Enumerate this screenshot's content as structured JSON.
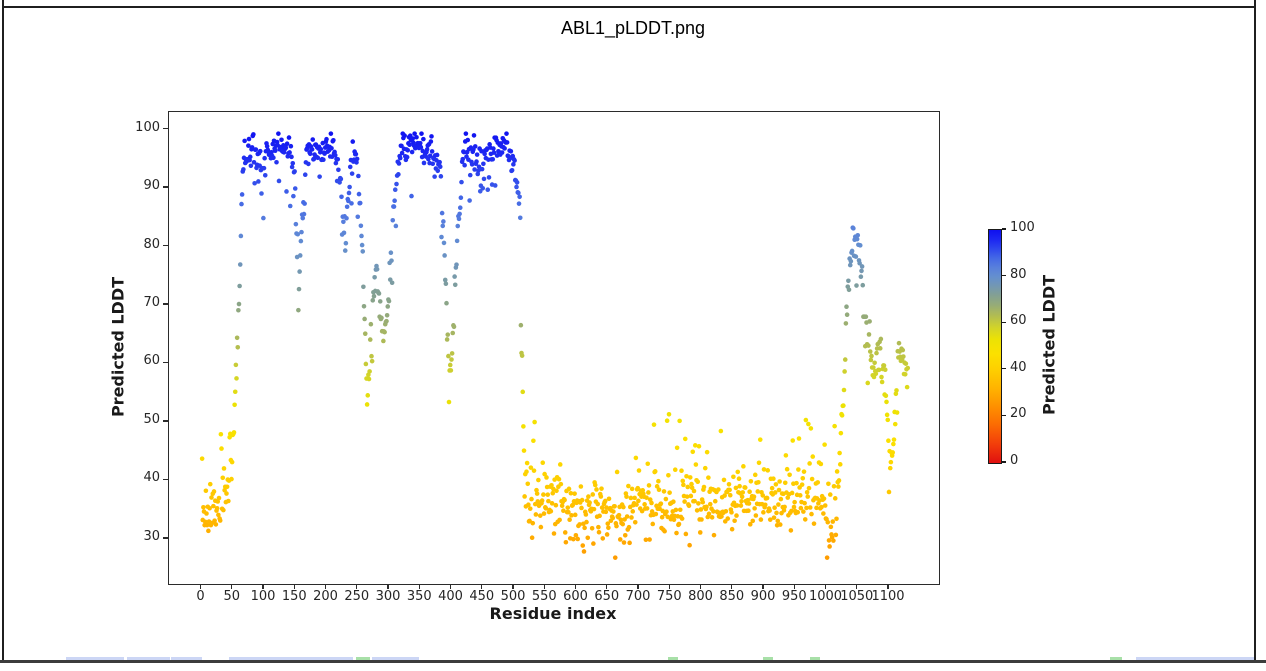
{
  "window": {
    "caption": "ABL1_pLDDT.png",
    "border_color": "#1f1f1f",
    "bottom_bar_color": "#3c3c3c",
    "below_edge_strips": [
      {
        "x": 66,
        "w": 58,
        "color": "#ccd6f5"
      },
      {
        "x": 127,
        "w": 43,
        "color": "#ccd6f5"
      },
      {
        "x": 171,
        "w": 31,
        "color": "#ccd6f5"
      },
      {
        "x": 229,
        "w": 124,
        "color": "#ccd6f5"
      },
      {
        "x": 356,
        "w": 14,
        "color": "#a8e0a8"
      },
      {
        "x": 372,
        "w": 47,
        "color": "#ccd6f5"
      },
      {
        "x": 668,
        "w": 10,
        "color": "#a8e0a8"
      },
      {
        "x": 763,
        "w": 10,
        "color": "#a8e0a8"
      },
      {
        "x": 810,
        "w": 10,
        "color": "#a8e0a8"
      },
      {
        "x": 1110,
        "w": 12,
        "color": "#a8e0a8"
      },
      {
        "x": 1136,
        "w": 118,
        "color": "#ccd6f5"
      }
    ]
  },
  "chart_data": {
    "type": "scatter",
    "title": "",
    "xlabel": "Residue index",
    "ylabel": "Predicted LDDT",
    "xlim": [
      -52,
      1180
    ],
    "ylim": [
      22.3,
      103
    ],
    "xticks": [
      0,
      50,
      100,
      150,
      200,
      250,
      300,
      350,
      400,
      450,
      500,
      550,
      600,
      650,
      700,
      750,
      800,
      850,
      900,
      950,
      1000,
      1050,
      1100
    ],
    "yticks": [
      30,
      40,
      50,
      60,
      70,
      80,
      90,
      100
    ],
    "grid": false,
    "num_points": 1130,
    "x_description": "one point per residue, index 1..1130",
    "summary": "N-terminal residues 1-52 low (~27-52); folded region 55-510 high (~85-99) with dips to ~54-77 near residues 150, 230, 260-300, 390-400 and at 505-515; central region 516-1020 low (~27-52); C-terminal 1020-1130 intermediate (rise to ~73-84 at 1032-1058, then ~55-67 with a dip to ~38-45 near 1100)",
    "seed": 7,
    "marker_radius_px": 2.3,
    "profile_anchors": [
      [
        1,
        36
      ],
      [
        6,
        34
      ],
      [
        12,
        33.5
      ],
      [
        18,
        34
      ],
      [
        25,
        34.5
      ],
      [
        32,
        35.5
      ],
      [
        38,
        37
      ],
      [
        44,
        40
      ],
      [
        48,
        44
      ],
      [
        51,
        49
      ],
      [
        54,
        55
      ],
      [
        56,
        60
      ],
      [
        58,
        64
      ],
      [
        60,
        70
      ],
      [
        62,
        78
      ],
      [
        64,
        88
      ],
      [
        66,
        93
      ],
      [
        69,
        95.5
      ],
      [
        75,
        96
      ],
      [
        85,
        96.5
      ],
      [
        92,
        95
      ],
      [
        96,
        92.5
      ],
      [
        99,
        93.5
      ],
      [
        103,
        95.5
      ],
      [
        110,
        96.5
      ],
      [
        120,
        97
      ],
      [
        132,
        97.3
      ],
      [
        140,
        96.5
      ],
      [
        147,
        94
      ],
      [
        151,
        88
      ],
      [
        154,
        77.5
      ],
      [
        156,
        72
      ],
      [
        158,
        77
      ],
      [
        161,
        86
      ],
      [
        164,
        92
      ],
      [
        168,
        95
      ],
      [
        175,
        96.3
      ],
      [
        185,
        96.8
      ],
      [
        192,
        95.5
      ],
      [
        198,
        96.5
      ],
      [
        205,
        96.8
      ],
      [
        212,
        96
      ],
      [
        218,
        94
      ],
      [
        223,
        89
      ],
      [
        227,
        83
      ],
      [
        230,
        79
      ],
      [
        233,
        85
      ],
      [
        237,
        91
      ],
      [
        241,
        94.5
      ],
      [
        246,
        95.5
      ],
      [
        250,
        93
      ],
      [
        254,
        88
      ],
      [
        258,
        78
      ],
      [
        261,
        67
      ],
      [
        264,
        57
      ],
      [
        266,
        54
      ],
      [
        268,
        58
      ],
      [
        271,
        64
      ],
      [
        274,
        69
      ],
      [
        277,
        73
      ],
      [
        280,
        76
      ],
      [
        283,
        73
      ],
      [
        286,
        69
      ],
      [
        289,
        66
      ],
      [
        292,
        64
      ],
      [
        295,
        66
      ],
      [
        298,
        70
      ],
      [
        301,
        75
      ],
      [
        304,
        80
      ],
      [
        307,
        85
      ],
      [
        310,
        89
      ],
      [
        314,
        93
      ],
      [
        318,
        95.5
      ],
      [
        325,
        96.5
      ],
      [
        335,
        97
      ],
      [
        345,
        97.3
      ],
      [
        355,
        96.8
      ],
      [
        365,
        96.3
      ],
      [
        372,
        95.5
      ],
      [
        378,
        94
      ],
      [
        383,
        91
      ],
      [
        387,
        84
      ],
      [
        390,
        76
      ],
      [
        393,
        67
      ],
      [
        396,
        59
      ],
      [
        398,
        57
      ],
      [
        400,
        60
      ],
      [
        403,
        67
      ],
      [
        406,
        74
      ],
      [
        409,
        81
      ],
      [
        412,
        87
      ],
      [
        415,
        91
      ],
      [
        418,
        94
      ],
      [
        422,
        95.8
      ],
      [
        430,
        96.5
      ],
      [
        438,
        96
      ],
      [
        444,
        93.5
      ],
      [
        448,
        91
      ],
      [
        452,
        93
      ],
      [
        456,
        95
      ],
      [
        462,
        96.5
      ],
      [
        470,
        97.3
      ],
      [
        478,
        97.5
      ],
      [
        486,
        97.3
      ],
      [
        493,
        96.5
      ],
      [
        498,
        95
      ],
      [
        502,
        93
      ],
      [
        505,
        90.5
      ],
      [
        508,
        87.5
      ],
      [
        510,
        85
      ],
      [
        511.5,
        60
      ],
      [
        513,
        57
      ],
      [
        515,
        50
      ],
      [
        516,
        44
      ],
      [
        517,
        40
      ],
      [
        520,
        37
      ],
      [
        530,
        36.5
      ],
      [
        545,
        35.5
      ],
      [
        558,
        36
      ],
      [
        570,
        37
      ],
      [
        585,
        35.5
      ],
      [
        600,
        34
      ],
      [
        615,
        33.5
      ],
      [
        630,
        34.5
      ],
      [
        645,
        35
      ],
      [
        660,
        34
      ],
      [
        675,
        35
      ],
      [
        690,
        36.5
      ],
      [
        705,
        36
      ],
      [
        720,
        35
      ],
      [
        735,
        36
      ],
      [
        750,
        37
      ],
      [
        765,
        36.5
      ],
      [
        780,
        36
      ],
      [
        795,
        37.5
      ],
      [
        810,
        37
      ],
      [
        825,
        36
      ],
      [
        840,
        36.5
      ],
      [
        855,
        37
      ],
      [
        870,
        36
      ],
      [
        885,
        37
      ],
      [
        900,
        37.5
      ],
      [
        915,
        37
      ],
      [
        930,
        36.5
      ],
      [
        945,
        37
      ],
      [
        960,
        37.5
      ],
      [
        975,
        36.5
      ],
      [
        990,
        36
      ],
      [
        1000,
        35
      ],
      [
        1008,
        33.5
      ],
      [
        1013,
        34.5
      ],
      [
        1018,
        37
      ],
      [
        1021,
        41
      ],
      [
        1024,
        47
      ],
      [
        1027,
        54
      ],
      [
        1030,
        62
      ],
      [
        1033,
        70
      ],
      [
        1036,
        76
      ],
      [
        1039,
        79.5
      ],
      [
        1043,
        80
      ],
      [
        1047,
        79
      ],
      [
        1051,
        80.5
      ],
      [
        1054,
        77.5
      ],
      [
        1057,
        73.5
      ],
      [
        1060,
        70
      ],
      [
        1063,
        67
      ],
      [
        1066,
        64.5
      ],
      [
        1070,
        62
      ],
      [
        1074,
        59.5
      ],
      [
        1078,
        61
      ],
      [
        1082,
        59.5
      ],
      [
        1086,
        61.5
      ],
      [
        1090,
        60
      ],
      [
        1094,
        57
      ],
      [
        1097,
        51
      ],
      [
        1100,
        45
      ],
      [
        1103,
        41
      ],
      [
        1106,
        44
      ],
      [
        1109,
        50
      ],
      [
        1112,
        56
      ],
      [
        1115,
        60
      ],
      [
        1118,
        61.5
      ],
      [
        1122,
        60
      ],
      [
        1126,
        59
      ],
      [
        1130,
        58
      ]
    ],
    "noise_segments": [
      {
        "from": 1,
        "to": 49,
        "sd": 2.8,
        "spike_up": {
          "p": 0.09,
          "min": 5,
          "max": 13
        },
        "clip": [
          27,
          52.5
        ]
      },
      {
        "from": 50,
        "to": 65,
        "sd": 1.8,
        "clip": [
          30,
          97
        ]
      },
      {
        "from": 66,
        "to": 509,
        "sd": 1.5,
        "spike_down": {
          "p": 0.07,
          "min": 3,
          "max": 9
        },
        "clip": [
          53,
          99.3
        ]
      },
      {
        "from": 510,
        "to": 518,
        "sd": 2.0,
        "clip": [
          35,
          90
        ]
      },
      {
        "from": 519,
        "to": 1019,
        "sd": 2.9,
        "spike_up": {
          "p": 0.055,
          "min": 6,
          "max": 15
        },
        "clip": [
          26.8,
          55
        ]
      },
      {
        "from": 1020,
        "to": 1058,
        "sd": 2.0,
        "clip": [
          40,
          84.5
        ]
      },
      {
        "from": 1059,
        "to": 1130,
        "sd": 2.2,
        "spike_down": {
          "p": 0.05,
          "min": 3,
          "max": 9
        },
        "clip": [
          36,
          68
        ]
      }
    ],
    "colormap_stops": [
      [
        0,
        "#e01010"
      ],
      [
        8,
        "#f23d0a"
      ],
      [
        16,
        "#fb6903"
      ],
      [
        24,
        "#fe8f00"
      ],
      [
        32,
        "#ffb300"
      ],
      [
        40,
        "#fecf00"
      ],
      [
        47,
        "#fbe100"
      ],
      [
        53,
        "#ece204"
      ],
      [
        58,
        "#d3d428"
      ],
      [
        63,
        "#b3bd50"
      ],
      [
        68,
        "#95ab79"
      ],
      [
        72,
        "#83a093"
      ],
      [
        76,
        "#7397b3"
      ],
      [
        80,
        "#648fcf"
      ],
      [
        84,
        "#587fdc"
      ],
      [
        88,
        "#4468e6"
      ],
      [
        92,
        "#2e46ed"
      ],
      [
        96,
        "#1c26f2"
      ],
      [
        100,
        "#0f10f0"
      ]
    ],
    "colorbar": {
      "label": "Predicted LDDT",
      "ticks": [
        0,
        20,
        40,
        60,
        80,
        100
      ],
      "min": 0,
      "max": 100
    }
  }
}
